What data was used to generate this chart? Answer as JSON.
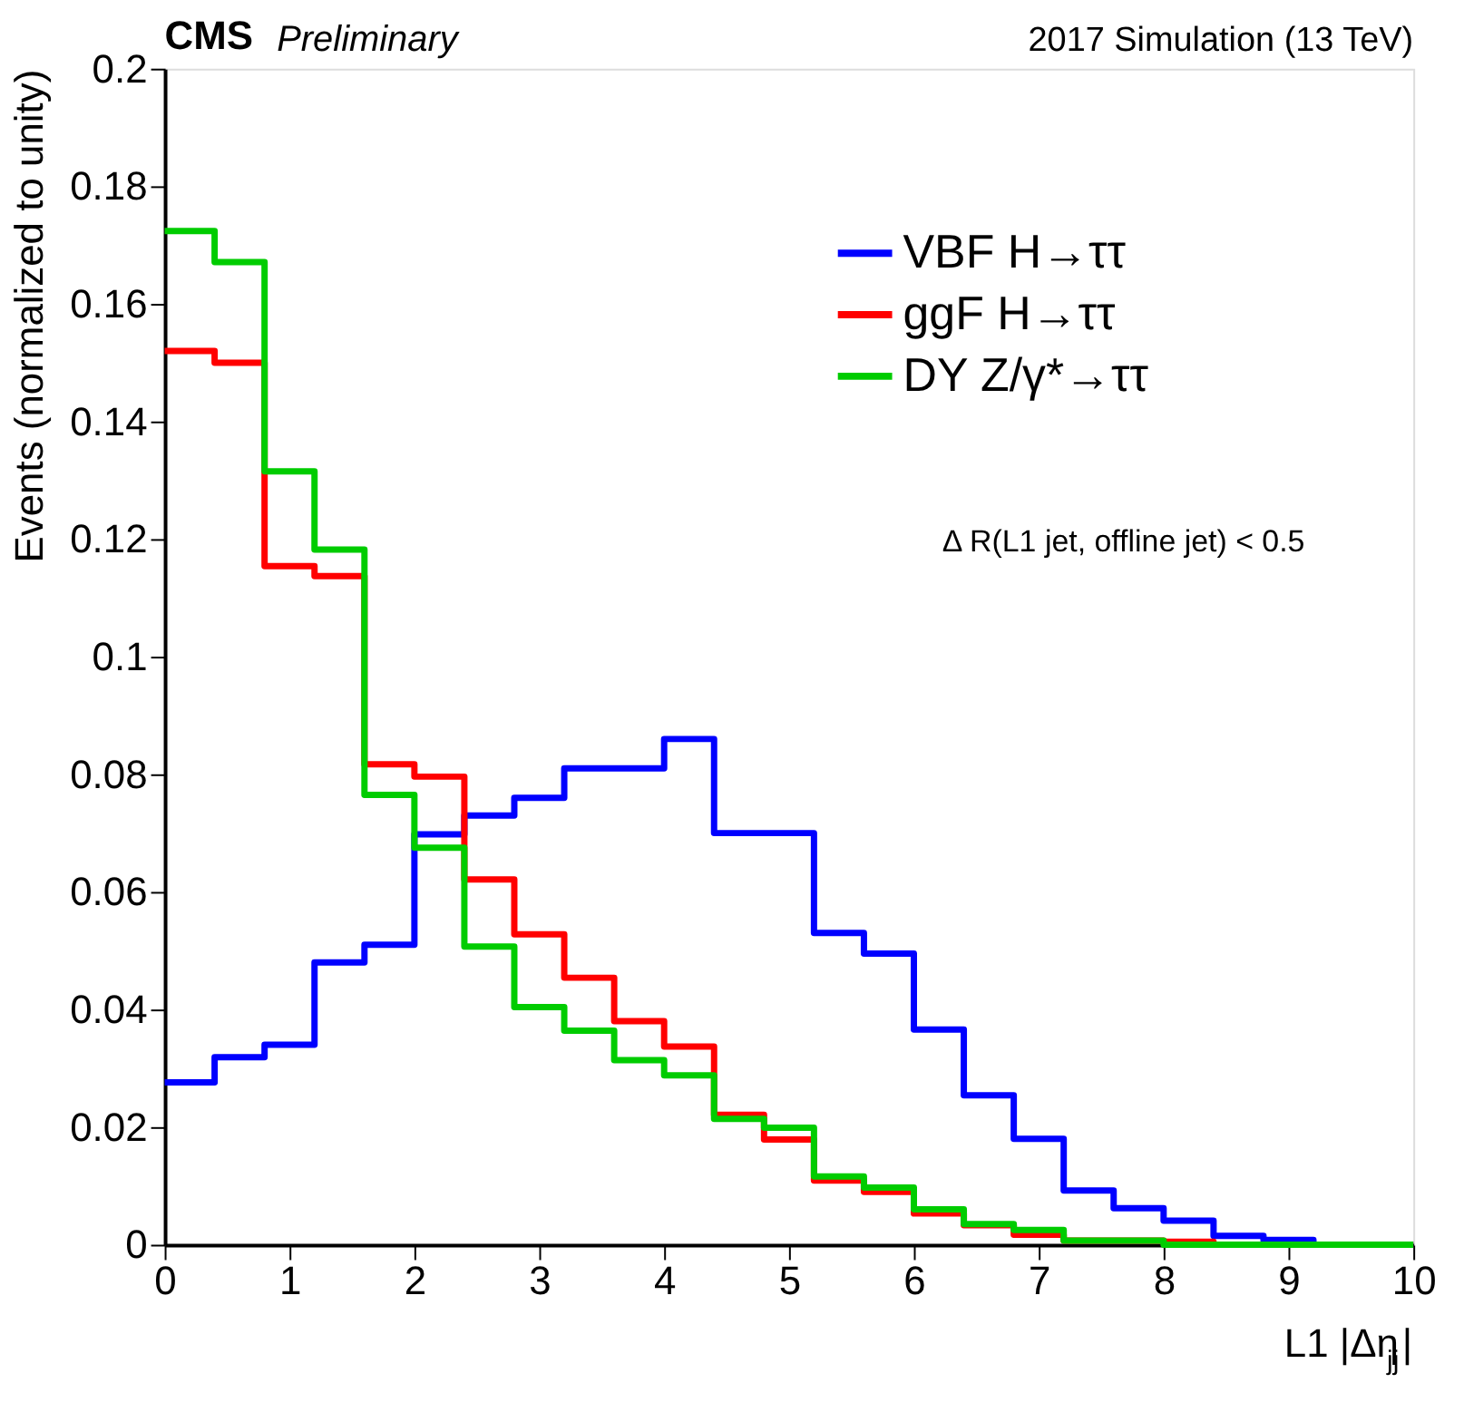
{
  "chart_data": {
    "type": "histogram",
    "title": "CMS",
    "subtitle": "Preliminary",
    "xlabel": "L1 |Δη$_{jj}$|",
    "ylabel": "Events (normalized to unity)",
    "annotations": [
      "2017 Simulation (13 TeV)",
      "Δ R(L1 jet, offline jet) < 0.5"
    ],
    "bins": [
      0,
      0.4,
      0.8,
      1.2,
      1.6,
      2.0,
      2.4,
      2.8,
      3.2,
      3.6,
      4.0,
      4.4,
      4.8,
      5.2,
      5.6,
      6.0,
      6.4,
      6.8,
      7.2,
      7.6,
      8.0,
      8.4,
      8.8,
      9.2,
      9.6,
      10.0
    ],
    "series": [
      {
        "name": "VBF H→ττ",
        "color": "#0000ff",
        "values": [
          0.0276,
          0.0319,
          0.034,
          0.048,
          0.051,
          0.0698,
          0.073,
          0.076,
          0.081,
          0.081,
          0.086,
          0.07,
          0.07,
          0.053,
          0.0495,
          0.0366,
          0.0254,
          0.018,
          0.0092,
          0.0062,
          0.0041,
          0.0015,
          0.0008,
          0,
          0
        ]
      },
      {
        "name": "ggF H→ττ",
        "color": "#ff0000",
        "values": [
          0.152,
          0.15,
          0.1154,
          0.1137,
          0.0817,
          0.0796,
          0.0621,
          0.0528,
          0.0454,
          0.038,
          0.0337,
          0.0221,
          0.0179,
          0.0109,
          0.009,
          0.0053,
          0.0033,
          0.0017,
          0.0007,
          0.0007,
          0.0005,
          0,
          0,
          0,
          0
        ]
      },
      {
        "name": "DY Z/γ*→ττ",
        "color": "#00cc00",
        "values": [
          0.1724,
          0.1671,
          0.1315,
          0.1182,
          0.0765,
          0.0675,
          0.0507,
          0.0404,
          0.0364,
          0.0314,
          0.0288,
          0.0214,
          0.0199,
          0.0116,
          0.0097,
          0.006,
          0.0035,
          0.0025,
          0.0007,
          0.0007,
          0,
          0,
          0,
          0,
          0
        ]
      }
    ],
    "xlim": [
      0,
      10
    ],
    "xticks": [
      0,
      1,
      2,
      3,
      4,
      5,
      6,
      7,
      8,
      9,
      10
    ],
    "ylim": [
      0,
      0.2
    ],
    "yticks": [
      0,
      0.02,
      0.04,
      0.06,
      0.08,
      0.1,
      0.12,
      0.14,
      0.16,
      0.18,
      0.2
    ],
    "grid": false,
    "legend": "top right",
    "line_style": "solid"
  }
}
